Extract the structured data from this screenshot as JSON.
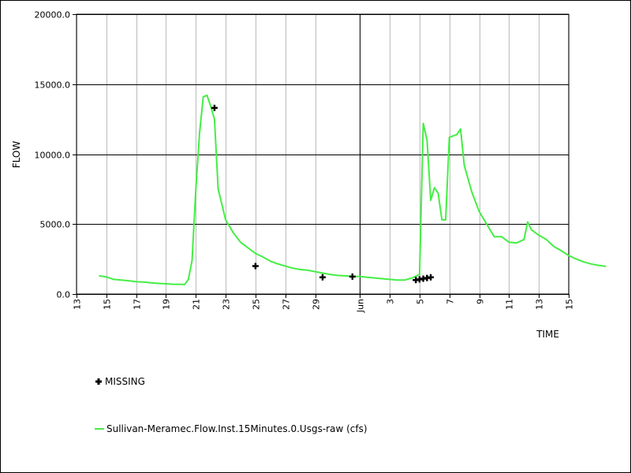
{
  "chart_data": {
    "type": "line",
    "xlabel": "TIME",
    "ylabel": "FLOW",
    "ylim": [
      0,
      20000
    ],
    "xlim": [
      "2013-05-13",
      "2013-06-15"
    ],
    "grid": true,
    "legend_position": "bottom-left",
    "month_label": "Jun",
    "yticks": [
      "0.0",
      "5000.0",
      "10000.0",
      "15000.0",
      "20000.0"
    ],
    "xticks": [
      {
        "date": "2013-05-13",
        "label": "13",
        "major": false
      },
      {
        "date": "2013-05-15",
        "label": "15",
        "major": false
      },
      {
        "date": "2013-05-17",
        "label": "17",
        "major": false
      },
      {
        "date": "2013-05-19",
        "label": "19",
        "major": false
      },
      {
        "date": "2013-05-21",
        "label": "21",
        "major": false
      },
      {
        "date": "2013-05-23",
        "label": "23",
        "major": false
      },
      {
        "date": "2013-05-25",
        "label": "25",
        "major": false
      },
      {
        "date": "2013-05-27",
        "label": "27",
        "major": false
      },
      {
        "date": "2013-05-29",
        "label": "29",
        "major": false
      },
      {
        "date": "2013-06-01",
        "label": "Jun",
        "major": true
      },
      {
        "date": "2013-06-03",
        "label": "3",
        "major": false
      },
      {
        "date": "2013-06-05",
        "label": "5",
        "major": false
      },
      {
        "date": "2013-06-07",
        "label": "7",
        "major": false
      },
      {
        "date": "2013-06-09",
        "label": "9",
        "major": false
      },
      {
        "date": "2013-06-11",
        "label": "11",
        "major": false
      },
      {
        "date": "2013-06-13",
        "label": "13",
        "major": false
      },
      {
        "date": "2013-06-15",
        "label": "15",
        "major": false
      }
    ],
    "series": [
      {
        "name": "Sullivan-Meramec.Flow.Inst.15Minutes.0.Usgs-raw (cfs)",
        "color": "#44ee44",
        "points": [
          [
            "2013-05-14 12:00",
            1300
          ],
          [
            "2013-05-15 00:00",
            1220
          ],
          [
            "2013-05-15 12:00",
            1050
          ],
          [
            "2013-05-16 00:00",
            1000
          ],
          [
            "2013-05-16 12:00",
            950
          ],
          [
            "2013-05-17 00:00",
            880
          ],
          [
            "2013-05-17 12:00",
            860
          ],
          [
            "2013-05-18 00:00",
            800
          ],
          [
            "2013-05-18 12:00",
            760
          ],
          [
            "2013-05-19 00:00",
            730
          ],
          [
            "2013-05-19 12:00",
            700
          ],
          [
            "2013-05-20 00:00",
            700
          ],
          [
            "2013-05-20 06:00",
            680
          ],
          [
            "2013-05-20 12:00",
            1050
          ],
          [
            "2013-05-20 18:00",
            2400
          ],
          [
            "2013-05-21 00:00",
            7500
          ],
          [
            "2013-05-21 06:00",
            11500
          ],
          [
            "2013-05-21 12:00",
            14100
          ],
          [
            "2013-05-21 18:00",
            14200
          ],
          [
            "2013-05-22 00:00",
            13400
          ],
          [
            "2013-05-22 06:00",
            12500
          ],
          [
            "2013-05-22 12:00",
            7500
          ],
          [
            "2013-05-23 00:00",
            5300
          ],
          [
            "2013-05-23 12:00",
            4400
          ],
          [
            "2013-05-24 00:00",
            3700
          ],
          [
            "2013-05-24 12:00",
            3300
          ],
          [
            "2013-05-25 00:00",
            2900
          ],
          [
            "2013-05-25 12:00",
            2650
          ],
          [
            "2013-05-26 00:00",
            2350
          ],
          [
            "2013-05-26 12:00",
            2150
          ],
          [
            "2013-05-27 00:00",
            2000
          ],
          [
            "2013-05-27 12:00",
            1850
          ],
          [
            "2013-05-28 00:00",
            1750
          ],
          [
            "2013-05-28 12:00",
            1700
          ],
          [
            "2013-05-29 00:00",
            1600
          ],
          [
            "2013-05-29 12:00",
            1500
          ],
          [
            "2013-05-30 00:00",
            1400
          ],
          [
            "2013-05-30 12:00",
            1330
          ],
          [
            "2013-05-31 00:00",
            1300
          ],
          [
            "2013-05-31 12:00",
            1270
          ],
          [
            "2013-06-01 00:00",
            1250
          ],
          [
            "2013-06-01 12:00",
            1200
          ],
          [
            "2013-06-02 00:00",
            1150
          ],
          [
            "2013-06-02 12:00",
            1100
          ],
          [
            "2013-06-03 00:00",
            1050
          ],
          [
            "2013-06-03 12:00",
            1000
          ],
          [
            "2013-06-04 00:00",
            1000
          ],
          [
            "2013-06-04 12:00",
            1150
          ],
          [
            "2013-06-05 00:00",
            1400
          ],
          [
            "2013-06-05 06:00",
            12200
          ],
          [
            "2013-06-05 12:00",
            11000
          ],
          [
            "2013-06-05 18:00",
            6700
          ],
          [
            "2013-06-06 00:00",
            7600
          ],
          [
            "2013-06-06 06:00",
            7200
          ],
          [
            "2013-06-06 12:00",
            5300
          ],
          [
            "2013-06-06 18:00",
            5300
          ],
          [
            "2013-06-07 00:00",
            11200
          ],
          [
            "2013-06-07 12:00",
            11400
          ],
          [
            "2013-06-07 18:00",
            11800
          ],
          [
            "2013-06-08 00:00",
            9200
          ],
          [
            "2013-06-08 12:00",
            7300
          ],
          [
            "2013-06-09 00:00",
            5900
          ],
          [
            "2013-06-09 12:00",
            5000
          ],
          [
            "2013-06-10 00:00",
            4100
          ],
          [
            "2013-06-10 12:00",
            4100
          ],
          [
            "2013-06-11 00:00",
            3700
          ],
          [
            "2013-06-11 12:00",
            3650
          ],
          [
            "2013-06-12 00:00",
            3900
          ],
          [
            "2013-06-12 06:00",
            5150
          ],
          [
            "2013-06-12 12:00",
            4600
          ],
          [
            "2013-06-13 00:00",
            4200
          ],
          [
            "2013-06-13 12:00",
            3900
          ],
          [
            "2013-06-14 00:00",
            3400
          ],
          [
            "2013-06-14 12:00",
            3100
          ],
          [
            "2013-06-15 00:00",
            2750
          ],
          [
            "2013-06-15 12:00",
            2500
          ],
          [
            "2013-06-16 00:00",
            2300
          ],
          [
            "2013-06-16 12:00",
            2150
          ],
          [
            "2013-06-17 00:00",
            2050
          ],
          [
            "2013-06-17 12:00",
            1980
          ]
        ]
      },
      {
        "name": "MISSING",
        "marker": "plus",
        "color": "#000000",
        "points": [
          [
            "2013-05-22 06:00",
            13300
          ],
          [
            "2013-05-25 00:00",
            2000
          ],
          [
            "2013-05-29 12:00",
            1200
          ],
          [
            "2013-05-31 12:00",
            1250
          ],
          [
            "2013-06-04 18:00",
            1000
          ],
          [
            "2013-06-05 00:00",
            1050
          ],
          [
            "2013-06-05 06:00",
            1100
          ],
          [
            "2013-06-05 12:00",
            1150
          ],
          [
            "2013-06-05 18:00",
            1200
          ]
        ]
      }
    ]
  }
}
